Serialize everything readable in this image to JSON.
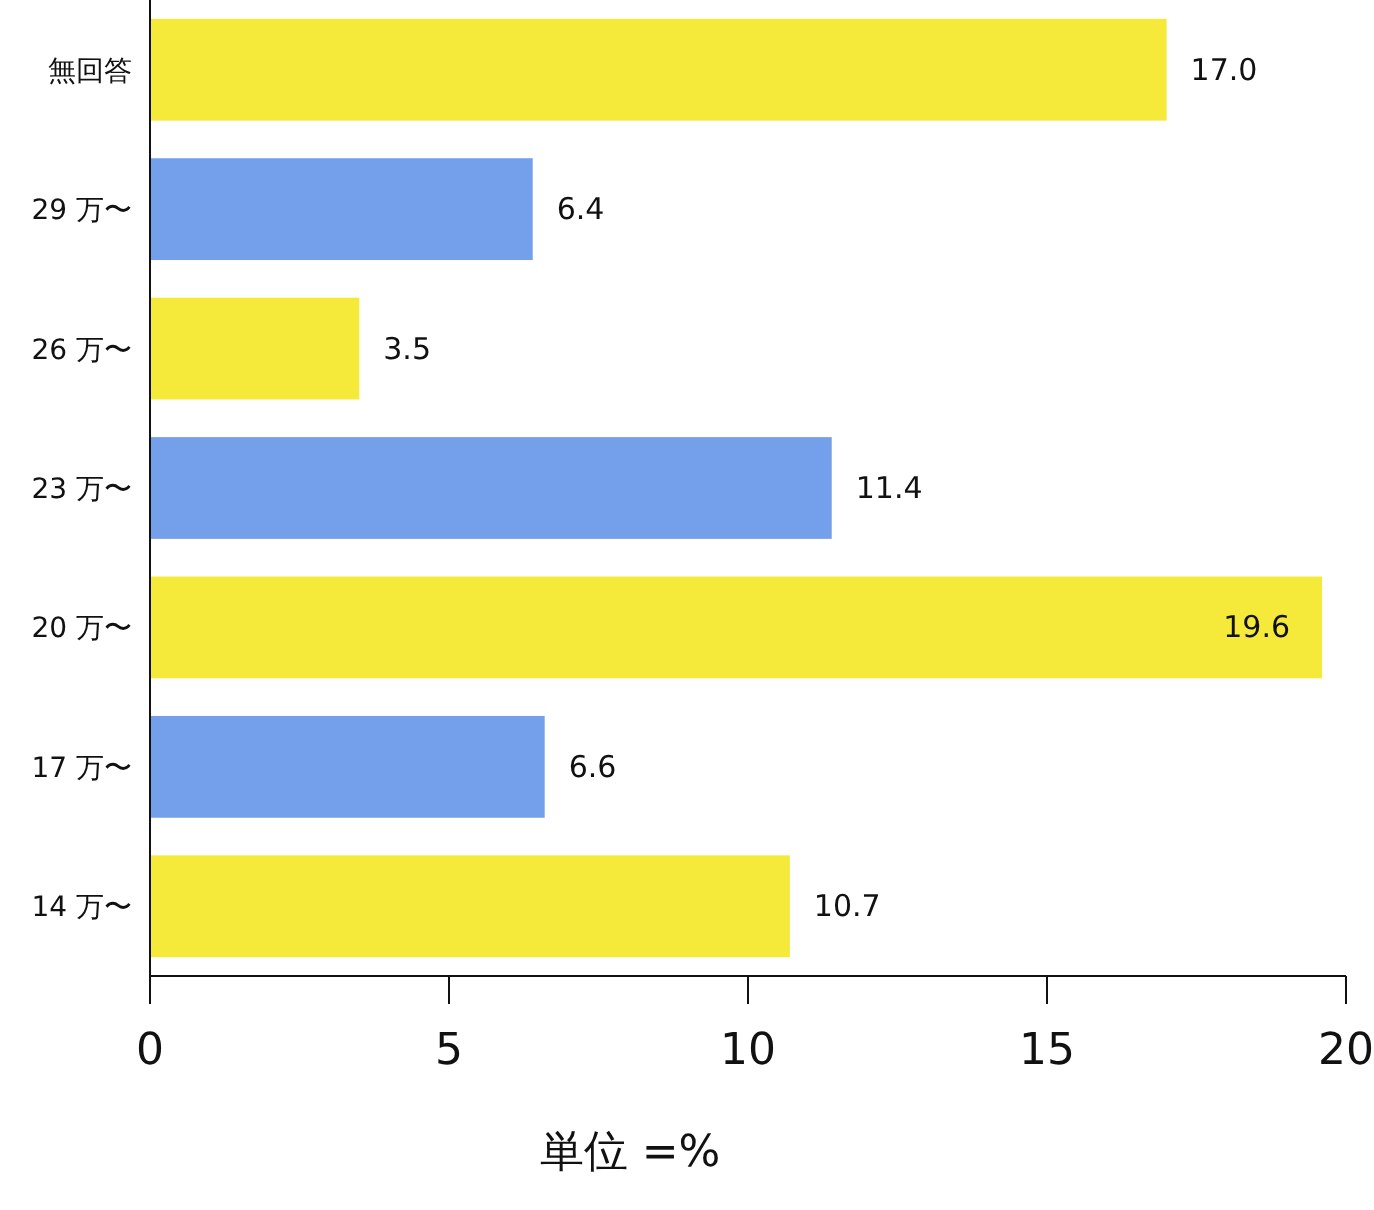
{
  "chart_data": {
    "type": "bar",
    "orientation": "horizontal",
    "categories": [
      "無回答",
      "29 万〜",
      "26 万〜",
      "23 万〜",
      "20 万〜",
      "17 万〜",
      "14 万〜"
    ],
    "values": [
      17.0,
      6.4,
      3.5,
      11.4,
      19.6,
      6.6,
      10.7
    ],
    "colors": [
      "#f5e93a",
      "#749feb",
      "#f5e93a",
      "#749feb",
      "#f5e93a",
      "#749feb",
      "#f5e93a"
    ],
    "value_labels": [
      "17.0",
      "6.4",
      "3.5",
      "11.4",
      "19.6",
      "6.6",
      "10.7"
    ],
    "xlim": [
      0,
      20
    ],
    "xticks": [
      0,
      5,
      10,
      15,
      20
    ],
    "xlabel": "単位 =%",
    "grid": false
  }
}
